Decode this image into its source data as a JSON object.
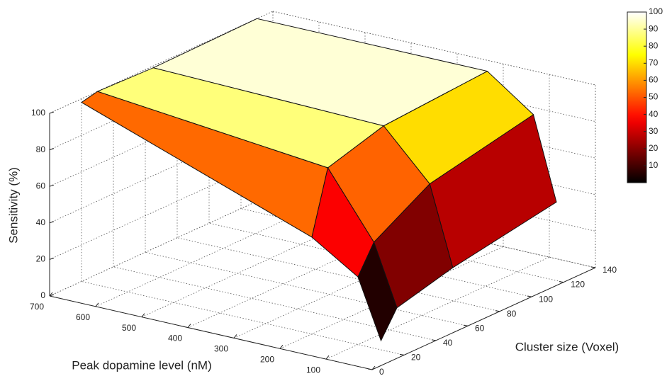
{
  "chart_data": {
    "type": "surface",
    "xlabel": "Peak dopamine level (nM)",
    "ylabel": "Cluster size (Voxel)",
    "zlabel": "Sensitivity (%)",
    "x": [
      700,
      200,
      100,
      50
    ],
    "y": [
      20,
      30,
      65,
      130
    ],
    "z": [
      [
        98,
        53,
        37,
        5
      ],
      [
        100,
        87,
        52,
        19
      ],
      [
        99,
        96,
        70,
        27
      ],
      [
        100,
        100,
        82,
        37
      ]
    ],
    "xlim": [
      0,
      700
    ],
    "xticks": [
      0,
      100,
      200,
      300,
      400,
      500,
      600,
      700
    ],
    "ylim": [
      0,
      140
    ],
    "yticks": [
      0,
      20,
      40,
      60,
      80,
      100,
      120,
      140
    ],
    "zlim": [
      0,
      100
    ],
    "zticks": [
      0,
      20,
      40,
      60,
      80,
      100
    ],
    "colormap": "hot",
    "clim": [
      0,
      100
    ],
    "colorbar_ticks": [
      10,
      20,
      30,
      40,
      50,
      60,
      70,
      80,
      90,
      100
    ],
    "grid": true
  }
}
